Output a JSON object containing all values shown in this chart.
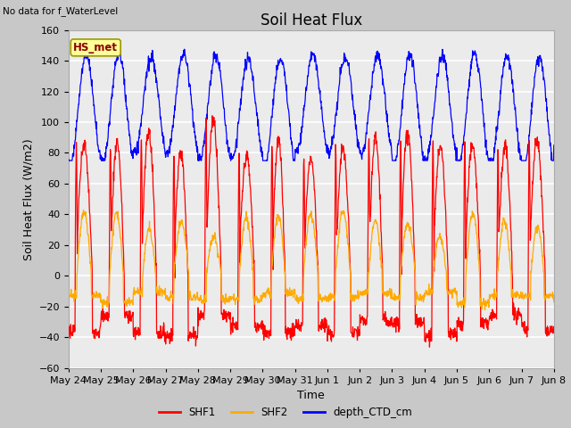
{
  "title": "Soil Heat Flux",
  "top_left_text": "No data for f_WaterLevel",
  "ylabel": "Soil Heat Flux (W/m2)",
  "xlabel": "Time",
  "ylim": [
    -60,
    160
  ],
  "yticks": [
    -60,
    -40,
    -20,
    0,
    20,
    40,
    60,
    80,
    100,
    120,
    140,
    160
  ],
  "xtick_labels": [
    "May 24",
    "May 25",
    "May 26",
    "May 27",
    "May 28",
    "May 29",
    "May 30",
    "May 31",
    "Jun 1",
    "Jun 2",
    "Jun 3",
    "Jun 4",
    "Jun 5",
    "Jun 6",
    "Jun 7",
    "Jun 8"
  ],
  "legend_entries": [
    "SHF1",
    "SHF2",
    "depth_CTD_cm"
  ],
  "legend_colors": [
    "#ff0000",
    "#ffaa00",
    "#0000ff"
  ],
  "station_label": "HS_met",
  "station_label_color": "#8B0000",
  "station_box_color": "#ffff99",
  "plot_bg_color": "#ebebeb",
  "grid_color": "#ffffff",
  "fig_bg_color": "#c8c8c8",
  "title_fontsize": 12,
  "label_fontsize": 9,
  "tick_fontsize": 8
}
